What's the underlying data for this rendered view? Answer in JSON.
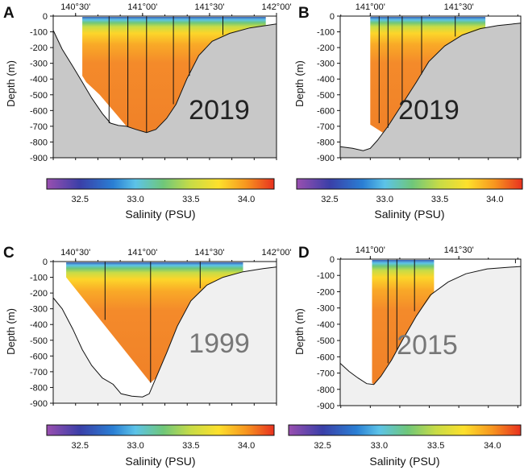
{
  "chart_data": [
    {
      "type": "contour-section",
      "letter": "A",
      "year": "2019",
      "year_color": "#222222",
      "background_color": "#c8c8c8",
      "ylabel": "Depth (m)",
      "ylim": [
        -900,
        0
      ],
      "y_ticks": [
        "0",
        "-100",
        "-200",
        "-300",
        "-400",
        "-500",
        "-600",
        "-700",
        "-800",
        "-900"
      ],
      "xlim_lon": [
        140.333,
        142.0
      ],
      "top_ticks": [
        {
          "lon": 140.5,
          "label": "140°30'"
        },
        {
          "lon": 141.0,
          "label": "141°00'"
        },
        {
          "lon": 141.5,
          "label": "141°30'"
        },
        {
          "lon": 142.0,
          "label": "142°00'"
        }
      ],
      "bathymetry": [
        [
          140.333,
          -90
        ],
        [
          140.4,
          -210
        ],
        [
          140.48,
          -320
        ],
        [
          140.55,
          -420
        ],
        [
          140.62,
          -520
        ],
        [
          140.7,
          -620
        ],
        [
          140.76,
          -680
        ],
        [
          140.82,
          -695
        ],
        [
          140.88,
          -700
        ],
        [
          140.95,
          -720
        ],
        [
          141.03,
          -740
        ],
        [
          141.1,
          -720
        ],
        [
          141.18,
          -650
        ],
        [
          141.25,
          -560
        ],
        [
          141.33,
          -400
        ],
        [
          141.42,
          -250
        ],
        [
          141.52,
          -160
        ],
        [
          141.65,
          -110
        ],
        [
          141.8,
          -75
        ],
        [
          141.92,
          -60
        ],
        [
          142.0,
          -50
        ]
      ],
      "data_region": [
        [
          140.55,
          -5
        ],
        [
          141.92,
          -5
        ],
        [
          141.92,
          -60
        ],
        [
          141.8,
          -75
        ],
        [
          141.65,
          -110
        ],
        [
          141.52,
          -160
        ],
        [
          141.42,
          -250
        ],
        [
          141.33,
          -400
        ],
        [
          141.25,
          -560
        ],
        [
          141.18,
          -650
        ],
        [
          141.1,
          -720
        ],
        [
          141.03,
          -740
        ],
        [
          140.95,
          -720
        ],
        [
          140.88,
          -700
        ],
        [
          140.78,
          -600
        ],
        [
          140.68,
          -500
        ],
        [
          140.58,
          -420
        ],
        [
          140.55,
          -380
        ]
      ],
      "cast_lines": [
        [
          140.75,
          -680
        ],
        [
          140.89,
          -700
        ],
        [
          141.03,
          -740
        ],
        [
          141.23,
          -560
        ],
        [
          141.35,
          -380
        ],
        [
          141.6,
          -120
        ]
      ]
    },
    {
      "type": "contour-section",
      "letter": "B",
      "year": "2019",
      "year_color": "#222222",
      "background_color": "#c8c8c8",
      "ylabel": "Depth (m)",
      "ylim": [
        -900,
        0
      ],
      "y_ticks": [
        "0",
        "-100",
        "-200",
        "-300",
        "-400",
        "-500",
        "-600",
        "-700",
        "-800",
        "-900"
      ],
      "xlim_lon": [
        140.83,
        141.85
      ],
      "top_ticks": [
        {
          "lon": 141.0,
          "label": "141°00'"
        },
        {
          "lon": 141.5,
          "label": "141°30'"
        }
      ],
      "bathymetry": [
        [
          140.83,
          -830
        ],
        [
          140.9,
          -840
        ],
        [
          140.96,
          -855
        ],
        [
          141.0,
          -840
        ],
        [
          141.04,
          -790
        ],
        [
          141.1,
          -700
        ],
        [
          141.18,
          -560
        ],
        [
          141.26,
          -420
        ],
        [
          141.33,
          -290
        ],
        [
          141.42,
          -190
        ],
        [
          141.52,
          -120
        ],
        [
          141.62,
          -80
        ],
        [
          141.72,
          -60
        ],
        [
          141.85,
          -45
        ]
      ],
      "data_region": [
        [
          141.0,
          -5
        ],
        [
          141.65,
          -5
        ],
        [
          141.65,
          -75
        ],
        [
          141.52,
          -120
        ],
        [
          141.42,
          -190
        ],
        [
          141.33,
          -290
        ],
        [
          141.26,
          -420
        ],
        [
          141.18,
          -560
        ],
        [
          141.1,
          -700
        ],
        [
          141.07,
          -740
        ],
        [
          141.0,
          -690
        ]
      ],
      "cast_lines": [
        [
          141.05,
          -680
        ],
        [
          141.1,
          -710
        ],
        [
          141.18,
          -560
        ],
        [
          141.29,
          -370
        ],
        [
          141.48,
          -130
        ]
      ]
    },
    {
      "type": "contour-section",
      "letter": "C",
      "year": "1999",
      "year_color": "#777777",
      "background_color": "#f0f0f0",
      "ylabel": "Depth (m)",
      "ylim": [
        -900,
        0
      ],
      "y_ticks": [
        "0",
        "-100",
        "-200",
        "-300",
        "-400",
        "-500",
        "-600",
        "-700",
        "-800",
        "-900"
      ],
      "xlim_lon": [
        140.333,
        142.0
      ],
      "top_ticks": [
        {
          "lon": 140.5,
          "label": "140°30'"
        },
        {
          "lon": 141.0,
          "label": "141°00'"
        },
        {
          "lon": 141.5,
          "label": "141°30'"
        },
        {
          "lon": 142.0,
          "label": "142°00'"
        }
      ],
      "bathymetry": [
        [
          140.333,
          -230
        ],
        [
          140.4,
          -300
        ],
        [
          140.48,
          -430
        ],
        [
          140.55,
          -560
        ],
        [
          140.62,
          -660
        ],
        [
          140.7,
          -740
        ],
        [
          140.78,
          -780
        ],
        [
          140.84,
          -840
        ],
        [
          140.92,
          -855
        ],
        [
          141.0,
          -860
        ],
        [
          141.05,
          -840
        ],
        [
          141.1,
          -740
        ],
        [
          141.18,
          -580
        ],
        [
          141.26,
          -410
        ],
        [
          141.36,
          -250
        ],
        [
          141.48,
          -150
        ],
        [
          141.6,
          -100
        ],
        [
          141.75,
          -65
        ],
        [
          141.9,
          -45
        ],
        [
          142.0,
          -35
        ]
      ],
      "data_region": [
        [
          140.43,
          -5
        ],
        [
          141.75,
          -5
        ],
        [
          141.75,
          -65
        ],
        [
          141.6,
          -100
        ],
        [
          141.48,
          -150
        ],
        [
          141.36,
          -250
        ],
        [
          141.26,
          -410
        ],
        [
          141.18,
          -580
        ],
        [
          141.1,
          -740
        ],
        [
          141.06,
          -770
        ],
        [
          140.43,
          -100
        ]
      ],
      "cast_lines": [
        [
          140.72,
          -370
        ],
        [
          141.06,
          -770
        ],
        [
          141.43,
          -170
        ]
      ]
    },
    {
      "type": "contour-section",
      "letter": "D",
      "year": "2015",
      "year_color": "#777777",
      "background_color": "#f0f0f0",
      "ylabel": "Depth (m)",
      "ylim": [
        -900,
        0
      ],
      "y_ticks": [
        "0",
        "-100",
        "-200",
        "-300",
        "-400",
        "-500",
        "-600",
        "-700",
        "-800",
        "-900"
      ],
      "xlim_lon": [
        140.83,
        141.85
      ],
      "top_ticks": [
        {
          "lon": 141.0,
          "label": "141°00'"
        },
        {
          "lon": 141.5,
          "label": "141°30'"
        }
      ],
      "bathymetry": [
        [
          140.83,
          -640
        ],
        [
          140.88,
          -690
        ],
        [
          140.93,
          -730
        ],
        [
          140.98,
          -765
        ],
        [
          141.02,
          -770
        ],
        [
          141.06,
          -720
        ],
        [
          141.12,
          -620
        ],
        [
          141.18,
          -500
        ],
        [
          141.26,
          -350
        ],
        [
          141.34,
          -220
        ],
        [
          141.44,
          -140
        ],
        [
          141.54,
          -90
        ],
        [
          141.66,
          -60
        ],
        [
          141.78,
          -50
        ],
        [
          141.85,
          -45
        ]
      ],
      "data_region": [
        [
          141.01,
          -5
        ],
        [
          141.36,
          -5
        ],
        [
          141.36,
          -200
        ],
        [
          141.26,
          -350
        ],
        [
          141.18,
          -500
        ],
        [
          141.12,
          -620
        ],
        [
          141.06,
          -720
        ],
        [
          141.02,
          -770
        ],
        [
          141.01,
          -760
        ]
      ],
      "cast_lines": [
        [
          141.1,
          -640
        ],
        [
          141.15,
          -560
        ],
        [
          141.25,
          -320
        ],
        [
          141.82,
          -25
        ]
      ]
    }
  ],
  "colorbar": {
    "title": "Salinity (PSU)",
    "range": [
      32.2,
      34.25
    ],
    "ticks": [
      {
        "value": 32.5,
        "label": "32.5"
      },
      {
        "value": 33.0,
        "label": "33.0"
      },
      {
        "value": 33.5,
        "label": "33.5"
      },
      {
        "value": 34.0,
        "label": "34.0"
      }
    ],
    "stops": [
      {
        "value": 32.2,
        "color": "#9a4fb0"
      },
      {
        "value": 32.5,
        "color": "#3a3fa8"
      },
      {
        "value": 32.8,
        "color": "#2a7fd4"
      },
      {
        "value": 33.0,
        "color": "#5cc3e8"
      },
      {
        "value": 33.25,
        "color": "#6fc77a"
      },
      {
        "value": 33.5,
        "color": "#c8dc46"
      },
      {
        "value": 33.75,
        "color": "#fde02c"
      },
      {
        "value": 34.0,
        "color": "#f7951f"
      },
      {
        "value": 34.25,
        "color": "#e8311f"
      }
    ]
  }
}
